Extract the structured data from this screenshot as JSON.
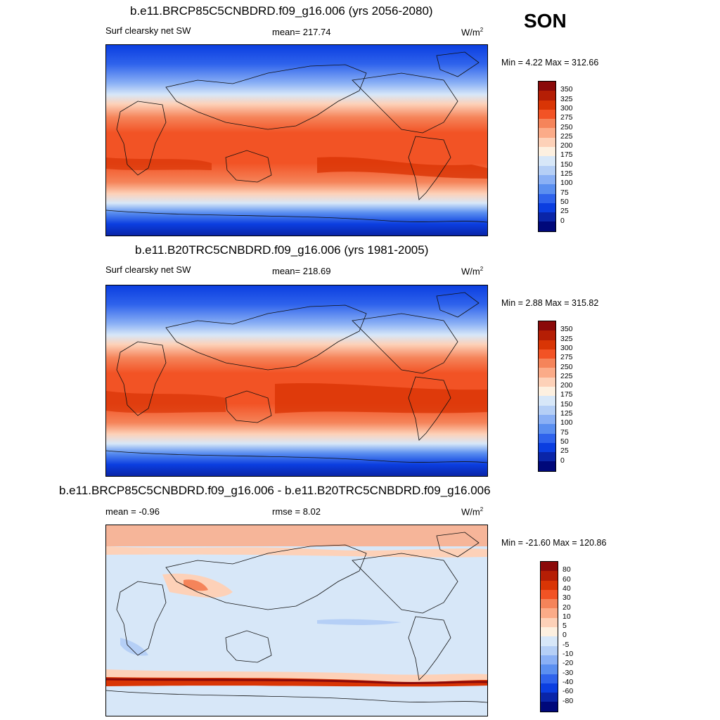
{
  "season": "SON",
  "panels": [
    {
      "title": "b.e11.BRCP85C5CNBDRD.f09_g16.006 (yrs 2056-2080)",
      "left_label": "Surf clearsky net SW",
      "center_label": "mean= 217.74",
      "units": "W/m",
      "units_sup": "2",
      "minmax": "Min =   4.22 Max = 312.66",
      "colorbar_labels": [
        "350",
        "325",
        "300",
        "275",
        "250",
        "225",
        "200",
        "175",
        "150",
        "125",
        "100",
        "75",
        "50",
        "25",
        "0"
      ]
    },
    {
      "title": "b.e11.B20TRC5CNBDRD.f09_g16.006 (yrs 1981-2005)",
      "left_label": "Surf clearsky net SW",
      "center_label": "mean= 218.69",
      "units": "W/m",
      "units_sup": "2",
      "minmax": "Min =   2.88 Max = 315.82",
      "colorbar_labels": [
        "350",
        "325",
        "300",
        "275",
        "250",
        "225",
        "200",
        "175",
        "150",
        "125",
        "100",
        "75",
        "50",
        "25",
        "0"
      ]
    },
    {
      "title": "b.e11.BRCP85C5CNBDRD.f09_g16.006 - b.e11.B20TRC5CNBDRD.f09_g16.006",
      "left_label": "mean =  -0.96",
      "center_label": "rmse =   8.02",
      "units": "W/m",
      "units_sup": "2",
      "minmax": "Min = -21.60 Max = 120.86",
      "colorbar_labels": [
        "80",
        "60",
        "40",
        "30",
        "20",
        "10",
        "5",
        "0",
        "-5",
        "-10",
        "-20",
        "-30",
        "-40",
        "-60",
        "-80"
      ]
    }
  ],
  "colors": {
    "abs_scale": [
      "#8b0a0a",
      "#b51e05",
      "#d93505",
      "#f25325",
      "#f5845a",
      "#fbab88",
      "#fdd1b8",
      "#fdf0e0",
      "#d7e7f8",
      "#b5cff6",
      "#8ab0f5",
      "#5b8ff0",
      "#2f63ec",
      "#0b3ee0",
      "#0a25a8",
      "#00087a"
    ],
    "diff_scale": [
      "#8b0a0a",
      "#b51e05",
      "#d93505",
      "#f25325",
      "#f5845a",
      "#fbab88",
      "#fdd1b8",
      "#fdf0e0",
      "#d7e7f8",
      "#b5cff6",
      "#8ab0f5",
      "#5b8ff0",
      "#2f63ec",
      "#0b3ee0",
      "#0a25a8",
      "#00087a"
    ]
  }
}
